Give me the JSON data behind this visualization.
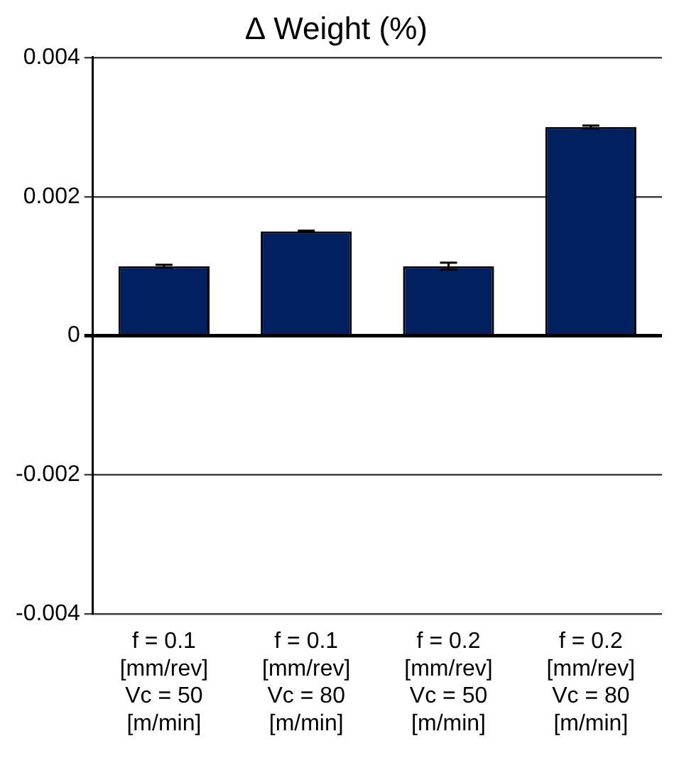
{
  "chart_data": {
    "type": "bar",
    "title": "∆ Weight (%)",
    "categories": [
      "f = 0.1\n[mm/rev]\nVc = 50\n[m/min]",
      "f = 0.1\n[mm/rev]\nVc = 80\n[m/min]",
      "f = 0.2\n[mm/rev]\nVc = 50\n[m/min]",
      "f = 0.2\n[mm/rev]\nVc = 80\n[m/min]"
    ],
    "values": [
      0.001,
      0.0015,
      0.001,
      0.003
    ],
    "errors": [
      2e-05,
      1e-05,
      5e-05,
      2e-05
    ],
    "color": "#002060",
    "ylim": [
      -0.004,
      0.004
    ],
    "yticks": [
      -0.004,
      -0.002,
      0,
      0.002,
      0.004
    ],
    "grid": "y"
  }
}
